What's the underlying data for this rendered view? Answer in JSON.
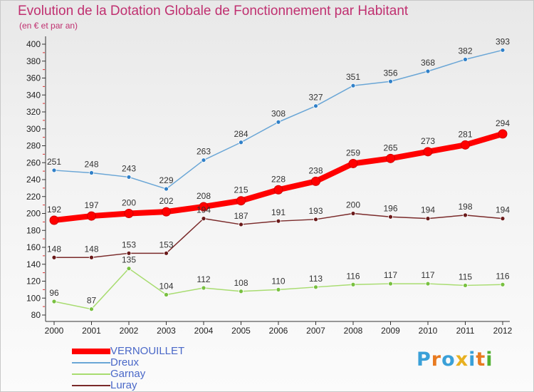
{
  "header": {
    "title": "Evolution de la Dotation Globale de Fonctionnement par Habitant",
    "subtitle": "(en € et par an)"
  },
  "logo": {
    "letters": [
      "P",
      "r",
      "o",
      "x",
      "i",
      "t",
      "i"
    ],
    "colors": [
      "#3aa0d8",
      "#e87a20",
      "#3aa0d8",
      "#e8b020",
      "#3aa0d8",
      "#e87a20",
      "#50b030"
    ]
  },
  "chart_data": {
    "type": "line",
    "title": "Evolution de la Dotation Globale de Fonctionnement par Habitant",
    "subtitle": "(en € et par an)",
    "x": [
      "2000",
      "2001",
      "2002",
      "2003",
      "2004",
      "2005",
      "2006",
      "2007",
      "2008",
      "2009",
      "2010",
      "2011",
      "2012"
    ],
    "ylim": [
      80,
      400
    ],
    "yticks": [
      "80",
      "100",
      "120",
      "140",
      "160",
      "180",
      "200",
      "220",
      "240",
      "260",
      "280",
      "300",
      "320",
      "340",
      "360",
      "380",
      "400"
    ],
    "grid": false,
    "legend_position": "bottom-left",
    "series": [
      {
        "name": "VERNOUILLET",
        "values": [
          192,
          197,
          200,
          202,
          208,
          215,
          228,
          238,
          259,
          265,
          273,
          281,
          294
        ],
        "labels": [
          "192",
          "197",
          "200",
          "202",
          "208",
          "215",
          "228",
          "238",
          "259",
          "265",
          "273",
          "281",
          "294"
        ],
        "color": "#ff0000",
        "width": 8,
        "marker": 6
      },
      {
        "name": "Dreux",
        "values": [
          251,
          248,
          243,
          229,
          263,
          284,
          308,
          327,
          351,
          356,
          368,
          382,
          393
        ],
        "labels": [
          "251",
          "248",
          "243",
          "229",
          "263",
          "284",
          "308",
          "327",
          "351",
          "356",
          "368",
          "382",
          "393"
        ],
        "color": "#6aa6d6",
        "marker_fill": "#3080c8",
        "width": 1.5,
        "marker": 3
      },
      {
        "name": "Garnay",
        "values": [
          96,
          87,
          135,
          104,
          112,
          108,
          110,
          113,
          116,
          117,
          117,
          115,
          116
        ],
        "labels": [
          "96",
          "87",
          "135",
          "104",
          "112",
          "108",
          "110",
          "113",
          "116",
          "117",
          "117",
          "115",
          "116"
        ],
        "color": "#a8dc70",
        "marker_fill": "#78c040",
        "width": 1.5,
        "marker": 3
      },
      {
        "name": "Luray",
        "values": [
          148,
          148,
          153,
          153,
          194,
          187,
          191,
          193,
          200,
          196,
          194,
          198,
          194
        ],
        "labels": [
          "148",
          "148",
          "153",
          "153",
          "194",
          "187",
          "191",
          "193",
          "200",
          "196",
          "194",
          "198",
          "194"
        ],
        "color": "#7a2a2a",
        "marker_fill": "#6a1a1a",
        "width": 1.5,
        "marker": 3
      }
    ]
  }
}
